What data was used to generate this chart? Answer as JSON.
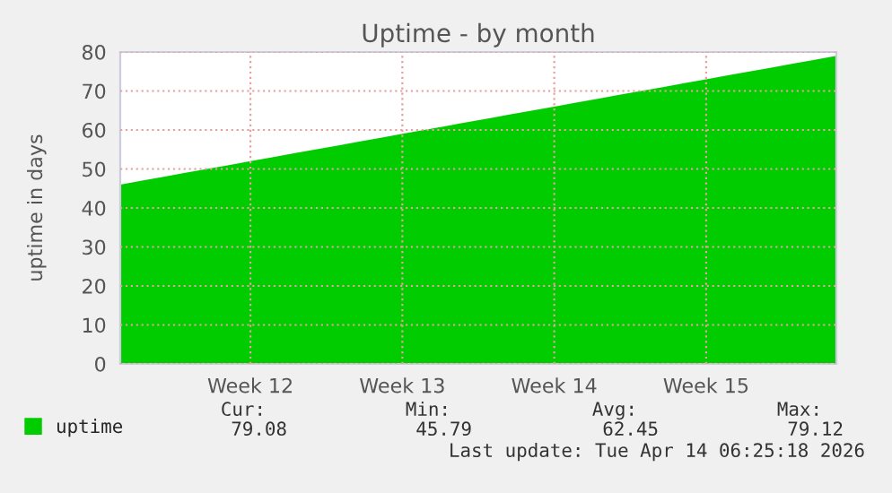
{
  "chart_data": {
    "type": "area",
    "title": "Uptime - by month",
    "ylabel": "uptime in days",
    "categories": [
      null,
      null,
      null,
      null,
      null,
      null,
      "Week 12",
      null,
      null,
      null,
      null,
      null,
      null,
      "Week 13",
      null,
      null,
      null,
      null,
      null,
      null,
      "Week 14",
      null,
      null,
      null,
      null,
      null,
      null,
      "Week 15",
      null,
      null,
      null,
      null,
      null,
      null
    ],
    "series": [
      {
        "name": "uptime",
        "color": "#00cc00",
        "values": [
          46,
          47,
          48,
          49,
          50,
          51,
          52,
          53,
          54,
          55,
          56,
          57,
          58,
          59,
          60,
          61,
          62,
          63,
          64,
          65,
          66,
          67,
          68,
          69,
          70,
          71,
          72,
          73,
          74,
          75,
          76,
          77,
          78,
          79
        ]
      }
    ],
    "ylim": [
      0,
      80
    ],
    "yticks": [
      0,
      10,
      20,
      30,
      40,
      50,
      60,
      70,
      80
    ],
    "grid": true,
    "legend": "bottom left",
    "annotations": [
      "Cur:",
      "Min:",
      "Avg:",
      "Max:",
      "79.08",
      "45.79",
      "62.45",
      "79.12",
      "Last update: Tue Apr 14 06:25:18 2026"
    ]
  }
}
